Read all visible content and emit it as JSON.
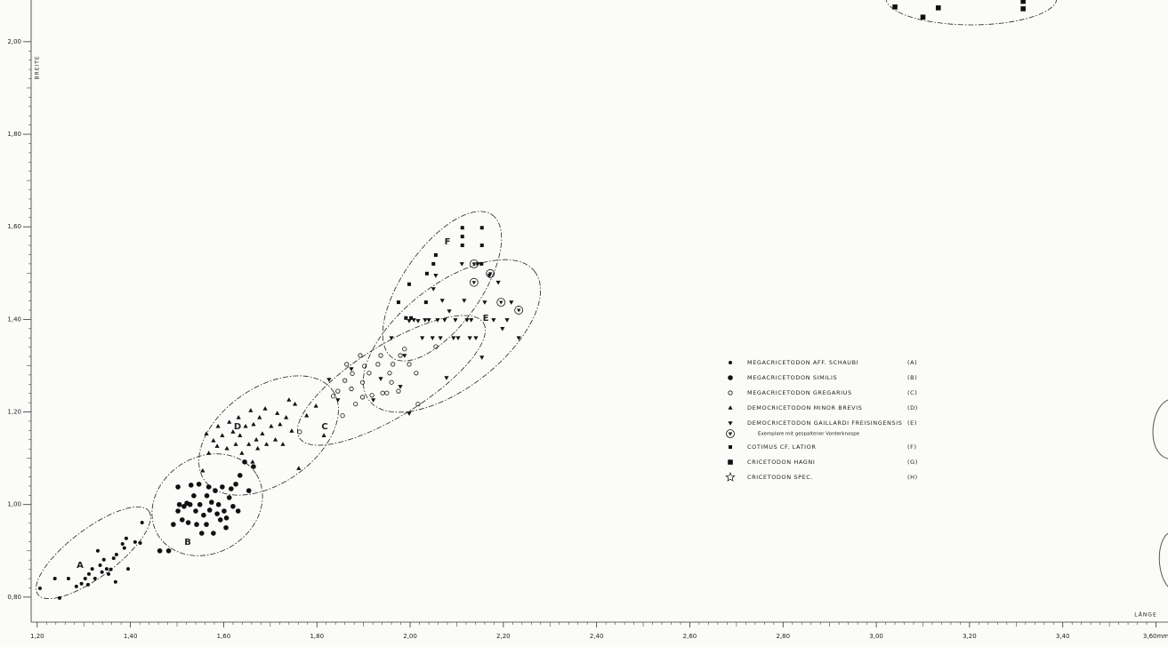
{
  "chart_data": {
    "type": "scatter",
    "xlabel": "LÄNGE",
    "ylabel": "BREITE",
    "xlim": [
      1.187,
      3.62
    ],
    "ylim": [
      0.746,
      2.09
    ],
    "xticks": [
      {
        "value": 1.2,
        "label": "1,20"
      },
      {
        "value": 1.4,
        "label": "1,40"
      },
      {
        "value": 1.6,
        "label": "1,60"
      },
      {
        "value": 1.8,
        "label": "1,80"
      },
      {
        "value": 2.0,
        "label": "2,00"
      },
      {
        "value": 2.2,
        "label": "2,20"
      },
      {
        "value": 2.4,
        "label": "2,40"
      },
      {
        "value": 2.6,
        "label": "2,60"
      },
      {
        "value": 2.8,
        "label": "2,80"
      },
      {
        "value": 3.0,
        "label": "3,00"
      },
      {
        "value": 3.2,
        "label": "3,20"
      },
      {
        "value": 3.4,
        "label": "3,40"
      },
      {
        "value": 3.6,
        "label": "3,60mm"
      }
    ],
    "yticks": [
      {
        "value": 0.8,
        "label": "0,80"
      },
      {
        "value": 1.0,
        "label": "1,00"
      },
      {
        "value": 1.2,
        "label": "1,20"
      },
      {
        "value": 1.4,
        "label": "1,40"
      },
      {
        "value": 1.6,
        "label": "1,60"
      },
      {
        "value": 1.8,
        "label": "1,80"
      },
      {
        "value": 2.0,
        "label": "2,00"
      }
    ],
    "enclosure_labels": [
      "A",
      "B",
      "C",
      "D",
      "E",
      "F"
    ],
    "series": [
      {
        "name": "MEGACRICETODON  AFF. SCHAUBI",
        "code": "(A)",
        "marker": "dot-small",
        "color": "#111",
        "x": [
          1.206,
          1.238,
          1.248,
          1.267,
          1.284,
          1.295,
          1.303,
          1.309,
          1.311,
          1.318,
          1.324,
          1.33,
          1.335,
          1.339,
          1.343,
          1.349,
          1.353,
          1.358,
          1.364,
          1.368,
          1.37,
          1.383,
          1.387,
          1.391,
          1.395,
          1.41,
          1.421,
          1.425
        ],
        "y": [
          0.819,
          0.84,
          0.798,
          0.84,
          0.823,
          0.829,
          0.84,
          0.827,
          0.85,
          0.861,
          0.84,
          0.9,
          0.869,
          0.854,
          0.881,
          0.861,
          0.85,
          0.86,
          0.884,
          0.833,
          0.892,
          0.915,
          0.906,
          0.927,
          0.861,
          0.919,
          0.917,
          0.961
        ]
      },
      {
        "name": "MEGACRICETODON  SIMILIS",
        "code": "(B)",
        "marker": "dot-large",
        "color": "#111",
        "x": [
          1.463,
          1.482,
          1.492,
          1.502,
          1.502,
          1.505,
          1.511,
          1.515,
          1.521,
          1.524,
          1.528,
          1.53,
          1.536,
          1.54,
          1.542,
          1.547,
          1.549,
          1.553,
          1.557,
          1.563,
          1.564,
          1.568,
          1.57,
          1.574,
          1.578,
          1.582,
          1.586,
          1.589,
          1.593,
          1.597,
          1.601,
          1.606,
          1.612,
          1.616,
          1.62,
          1.626,
          1.631,
          1.635,
          1.645,
          1.654,
          1.664,
          1.605
        ],
        "y": [
          0.9,
          0.9,
          0.957,
          0.986,
          1.038,
          1.0,
          0.967,
          0.996,
          1.003,
          0.961,
          1.0,
          1.042,
          1.019,
          0.986,
          0.957,
          1.044,
          1.0,
          0.938,
          0.977,
          0.957,
          1.019,
          1.038,
          0.988,
          1.005,
          0.938,
          1.03,
          0.98,
          1.0,
          0.967,
          1.038,
          0.986,
          0.971,
          1.015,
          1.034,
          0.996,
          1.044,
          0.986,
          1.063,
          1.092,
          1.03,
          1.082,
          0.95
        ]
      },
      {
        "name": "MEGACRICETODON  GREGARIUS",
        "code": "(C)",
        "marker": "circle-open",
        "color": "#111",
        "x": [
          1.763,
          1.835,
          1.845,
          1.855,
          1.86,
          1.864,
          1.874,
          1.876,
          1.883,
          1.893,
          1.898,
          1.898,
          1.902,
          1.912,
          1.918,
          1.931,
          1.937,
          1.941,
          1.95,
          1.956,
          1.96,
          1.963,
          1.975,
          1.979,
          1.988,
          1.998,
          2.013,
          2.017,
          2.055
        ],
        "y": [
          1.157,
          1.234,
          1.245,
          1.192,
          1.268,
          1.303,
          1.25,
          1.283,
          1.217,
          1.322,
          1.264,
          1.232,
          1.299,
          1.284,
          1.236,
          1.303,
          1.322,
          1.241,
          1.241,
          1.284,
          1.264,
          1.303,
          1.245,
          1.322,
          1.336,
          1.303,
          1.284,
          1.217,
          1.341
        ]
      },
      {
        "name": "DEMOCRICETODON  MINOR BREVIS",
        "code": "(D)",
        "marker": "triangle-up",
        "color": "#111",
        "x": [
          1.555,
          1.563,
          1.568,
          1.578,
          1.586,
          1.588,
          1.597,
          1.607,
          1.612,
          1.62,
          1.626,
          1.632,
          1.635,
          1.639,
          1.647,
          1.654,
          1.658,
          1.662,
          1.664,
          1.67,
          1.673,
          1.677,
          1.683,
          1.689,
          1.692,
          1.702,
          1.711,
          1.715,
          1.721,
          1.727,
          1.734,
          1.74,
          1.746,
          1.753,
          1.761,
          1.778,
          1.798,
          1.815
        ],
        "y": [
          1.073,
          1.153,
          1.111,
          1.138,
          1.126,
          1.169,
          1.149,
          1.121,
          1.178,
          1.157,
          1.13,
          1.188,
          1.149,
          1.111,
          1.169,
          1.13,
          1.203,
          1.092,
          1.173,
          1.14,
          1.121,
          1.188,
          1.153,
          1.207,
          1.13,
          1.169,
          1.14,
          1.197,
          1.173,
          1.13,
          1.188,
          1.226,
          1.159,
          1.217,
          1.078,
          1.192,
          1.213,
          1.149
        ]
      },
      {
        "name": "DEMOCRICETODON  GAILLARDI  FREISINGENSIS",
        "code": "(E)",
        "marker": "triangle-down",
        "color": "#111",
        "x": [
          1.826,
          1.845,
          1.874,
          1.921,
          1.937,
          1.96,
          1.979,
          1.988,
          1.998,
          1.998,
          2.008,
          2.017,
          2.026,
          2.032,
          2.04,
          2.048,
          2.05,
          2.055,
          2.059,
          2.065,
          2.069,
          2.074,
          2.078,
          2.084,
          2.093,
          2.097,
          2.103,
          2.111,
          2.116,
          2.122,
          2.128,
          2.131,
          2.141,
          2.145,
          2.154,
          2.16,
          2.17,
          2.179,
          2.189,
          2.198,
          2.208,
          2.217,
          2.233
        ],
        "y": [
          1.27,
          1.226,
          1.293,
          1.226,
          1.272,
          1.36,
          1.255,
          1.322,
          1.197,
          1.397,
          1.399,
          1.397,
          1.36,
          1.399,
          1.399,
          1.36,
          1.466,
          1.495,
          1.399,
          1.36,
          1.441,
          1.399,
          1.274,
          1.418,
          1.36,
          1.399,
          1.36,
          1.52,
          1.441,
          1.399,
          1.36,
          1.399,
          1.36,
          1.52,
          1.318,
          1.437,
          1.495,
          1.399,
          1.48,
          1.38,
          1.399,
          1.437,
          1.36
        ]
      },
      {
        "name": "Exemplare mit gespaltener Vorderknospe",
        "marker": "triangle-down-circled",
        "color": "#111",
        "x": [
          2.137,
          2.137,
          2.172,
          2.195,
          2.233
        ],
        "y": [
          1.52,
          1.48,
          1.499,
          1.437,
          1.42
        ]
      },
      {
        "name": "COTIMUS CF. LATIOR",
        "code": "(F)",
        "marker": "square-small",
        "color": "#111",
        "x": [
          1.975,
          1.991,
          1.998,
          2.002,
          2.034,
          2.036,
          2.05,
          2.055,
          2.112,
          2.112,
          2.112,
          2.154,
          2.154,
          2.153
        ],
        "y": [
          1.437,
          1.403,
          1.476,
          1.403,
          1.437,
          1.499,
          1.52,
          1.539,
          1.598,
          1.579,
          1.56,
          1.598,
          1.56,
          1.52
        ]
      },
      {
        "name": "CRICETODON  HAGNI",
        "code": "(G)",
        "marker": "square-large",
        "color": "#111",
        "x": [
          3.04,
          3.1,
          3.133,
          3.315,
          3.315
        ],
        "y": [
          2.075,
          2.053,
          2.073,
          2.071,
          2.087
        ]
      },
      {
        "name": "CRICETODON  SPEC.",
        "code": "(H)",
        "marker": "star",
        "color": "#111",
        "x": [],
        "y": []
      }
    ]
  }
}
